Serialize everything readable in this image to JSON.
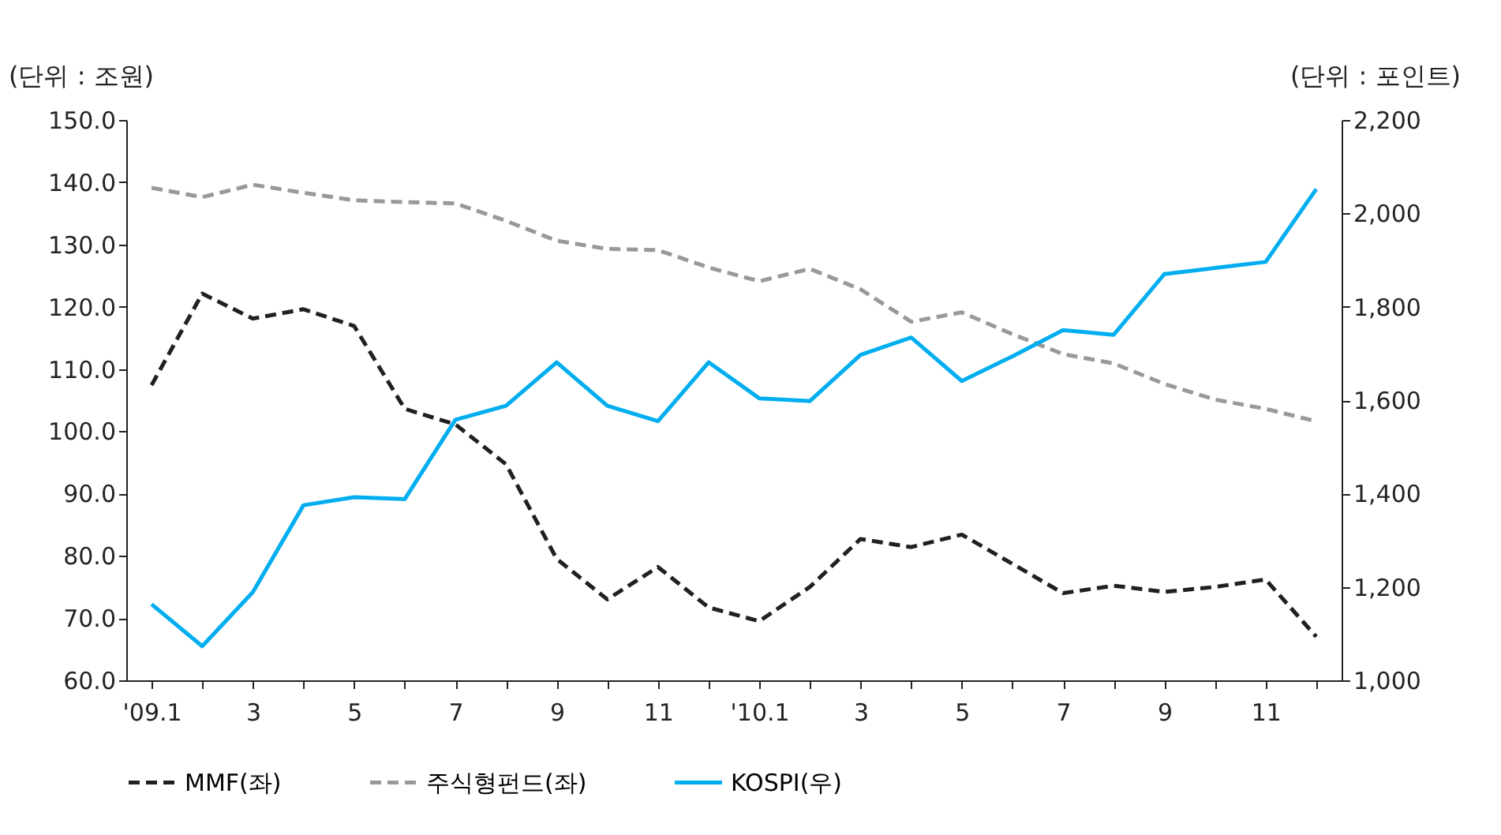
{
  "chart_data": {
    "type": "line",
    "ylabel": "(단위 : 조원)",
    "y2label": "(단위 : 포인트)",
    "categories": [
      "'09.1",
      null,
      "3",
      null,
      "5",
      null,
      "7",
      null,
      "9",
      null,
      "11",
      null,
      "'10.1",
      null,
      "3",
      null,
      "5",
      null,
      "7",
      null,
      "9",
      null,
      "11",
      null
    ],
    "series": [
      {
        "name": "MMF(좌)",
        "color": "#231f20",
        "line_style": "dashed",
        "values": [
          107.4,
          122.1,
          118.1,
          119.6,
          116.9,
          103.6,
          101.1,
          94.7,
          79.5,
          73.0,
          78.2,
          71.7,
          69.5,
          75.0,
          82.7,
          81.4,
          83.4,
          78.7,
          74.0,
          75.2,
          74.2,
          75.0,
          76.2,
          67.0
        ]
      },
      {
        "name": "주식형펀드(좌)",
        "color": "#999999",
        "line_style": "dashed",
        "values": [
          139.1,
          137.6,
          139.6,
          138.3,
          137.1,
          136.8,
          136.6,
          133.8,
          130.6,
          129.3,
          129.1,
          126.3,
          124.1,
          126.1,
          122.8,
          117.6,
          119.1,
          115.6,
          112.4,
          110.9,
          107.6,
          105.1,
          103.6,
          101.6
        ]
      },
      {
        "name": "KOSPI(우)",
        "color": "#00aeef",
        "line_style": "solid",
        "axis": "y2",
        "values": [
          1163,
          1073,
          1189,
          1375,
          1392,
          1388,
          1558,
          1588,
          1681,
          1588,
          1555,
          1681,
          1604,
          1598,
          1697,
          1734,
          1641,
          1694,
          1750,
          1740,
          1870,
          1883,
          1896,
          2052
        ]
      }
    ],
    "ylim": [
      60,
      150
    ],
    "yticks": [
      {
        "value": 60,
        "label": "60.0"
      },
      {
        "value": 70,
        "label": "70.0"
      },
      {
        "value": 80,
        "label": "80.0"
      },
      {
        "value": 90,
        "label": "90.0"
      },
      {
        "value": 100,
        "label": "100.0"
      },
      {
        "value": 110,
        "label": "110.0"
      },
      {
        "value": 120,
        "label": "120.0"
      },
      {
        "value": 130,
        "label": "130.0"
      },
      {
        "value": 140,
        "label": "140.0"
      },
      {
        "value": 150,
        "label": "150.0"
      }
    ],
    "y2lim": [
      1000,
      2200
    ],
    "y2ticks": [
      {
        "value": 1000,
        "label": "1,000"
      },
      {
        "value": 1200,
        "label": "1,200"
      },
      {
        "value": 1400,
        "label": "1,400"
      },
      {
        "value": 1600,
        "label": "1,600"
      },
      {
        "value": 1800,
        "label": "1,800"
      },
      {
        "value": 2000,
        "label": "2,000"
      },
      {
        "value": 2200,
        "label": "2,200"
      }
    ],
    "grid": false,
    "legend": "bottom",
    "marker": "none"
  }
}
